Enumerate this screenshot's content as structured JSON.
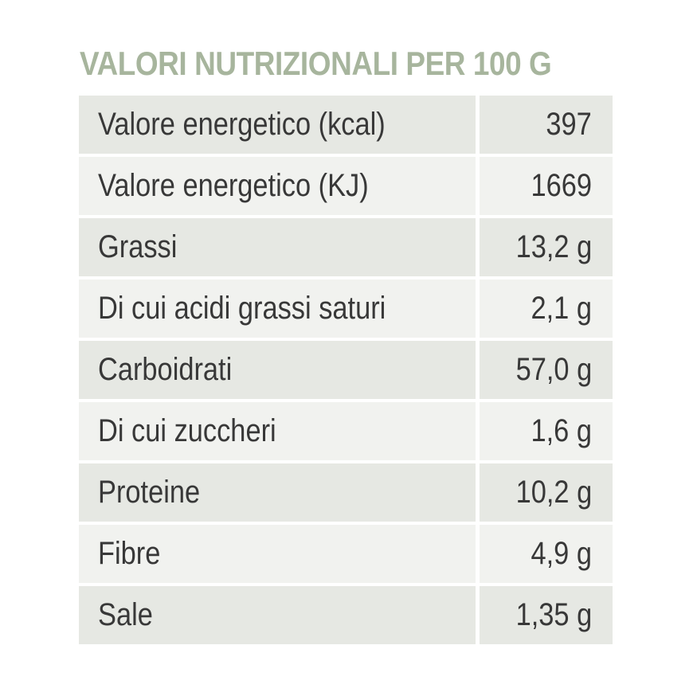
{
  "title": "VALORI NUTRIZIONALI PER 100 G",
  "rows": [
    {
      "label": "Valore energetico (kcal)",
      "value": "397"
    },
    {
      "label": "Valore energetico (KJ)",
      "value": "1669"
    },
    {
      "label": "Grassi",
      "value": "13,2 g"
    },
    {
      "label": "Di cui acidi grassi saturi",
      "value": "2,1 g"
    },
    {
      "label": "Carboidrati",
      "value": "57,0 g"
    },
    {
      "label": "Di cui zuccheri",
      "value": "1,6 g"
    },
    {
      "label": "Proteine",
      "value": "10,2 g"
    },
    {
      "label": "Fibre",
      "value": "4,9 g"
    },
    {
      "label": "Sale",
      "value": "1,35 g"
    }
  ],
  "colors": {
    "title": "#a7b59d",
    "text": "#383838",
    "row_dark": "#e6e8e3",
    "row_light": "#f1f2ef"
  }
}
